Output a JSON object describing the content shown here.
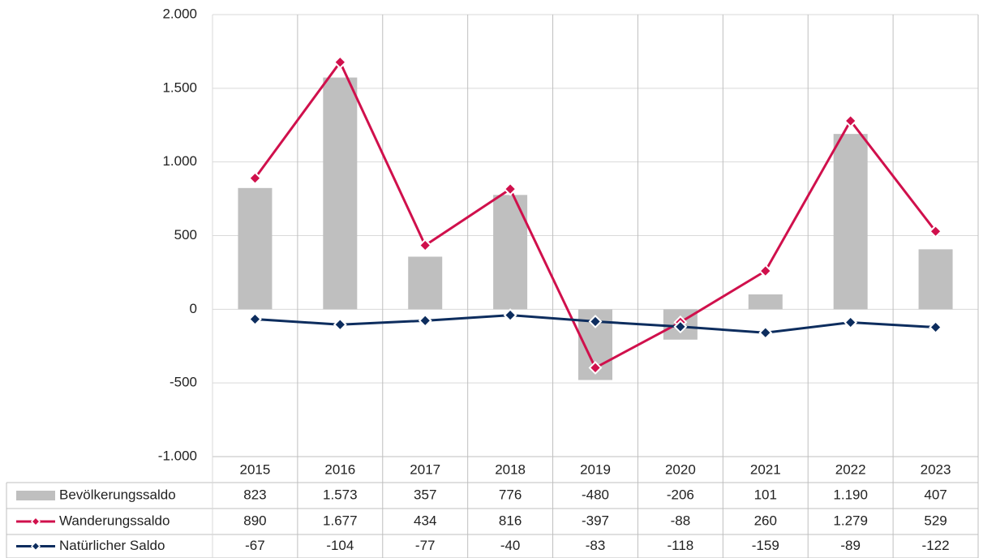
{
  "chart_data": {
    "type": "bar-line",
    "categories": [
      "2015",
      "2016",
      "2017",
      "2018",
      "2019",
      "2020",
      "2021",
      "2022",
      "2023"
    ],
    "series": [
      {
        "name": "Bevölkerungssaldo",
        "type": "bar",
        "color": "#bfbfbf",
        "values": [
          823,
          1573,
          357,
          776,
          -480,
          -206,
          101,
          1190,
          407
        ],
        "value_labels": [
          "823",
          "1.573",
          "357",
          "776",
          "-480",
          "-206",
          "101",
          "1.190",
          "407"
        ]
      },
      {
        "name": "Wanderungssaldo",
        "type": "line",
        "color": "#d0104c",
        "values": [
          890,
          1677,
          434,
          816,
          -397,
          -88,
          260,
          1279,
          529
        ],
        "value_labels": [
          "890",
          "1.677",
          "434",
          "816",
          "-397",
          "-88",
          "260",
          "1.279",
          "529"
        ]
      },
      {
        "name": "Natürlicher Saldo",
        "type": "line",
        "color": "#0d2d5e",
        "values": [
          -67,
          -104,
          -77,
          -40,
          -83,
          -118,
          -159,
          -89,
          -122
        ]
      }
    ],
    "ylim": [
      -1000,
      2000
    ],
    "yticks": [
      {
        "value": -1000,
        "label": "-1.000"
      },
      -500,
      0,
      500,
      {
        "value": 1000,
        "label": "1.000"
      },
      {
        "value": 1500,
        "label": "1.500"
      },
      {
        "value": 2000,
        "label": "2.000"
      }
    ],
    "grid": true
  }
}
